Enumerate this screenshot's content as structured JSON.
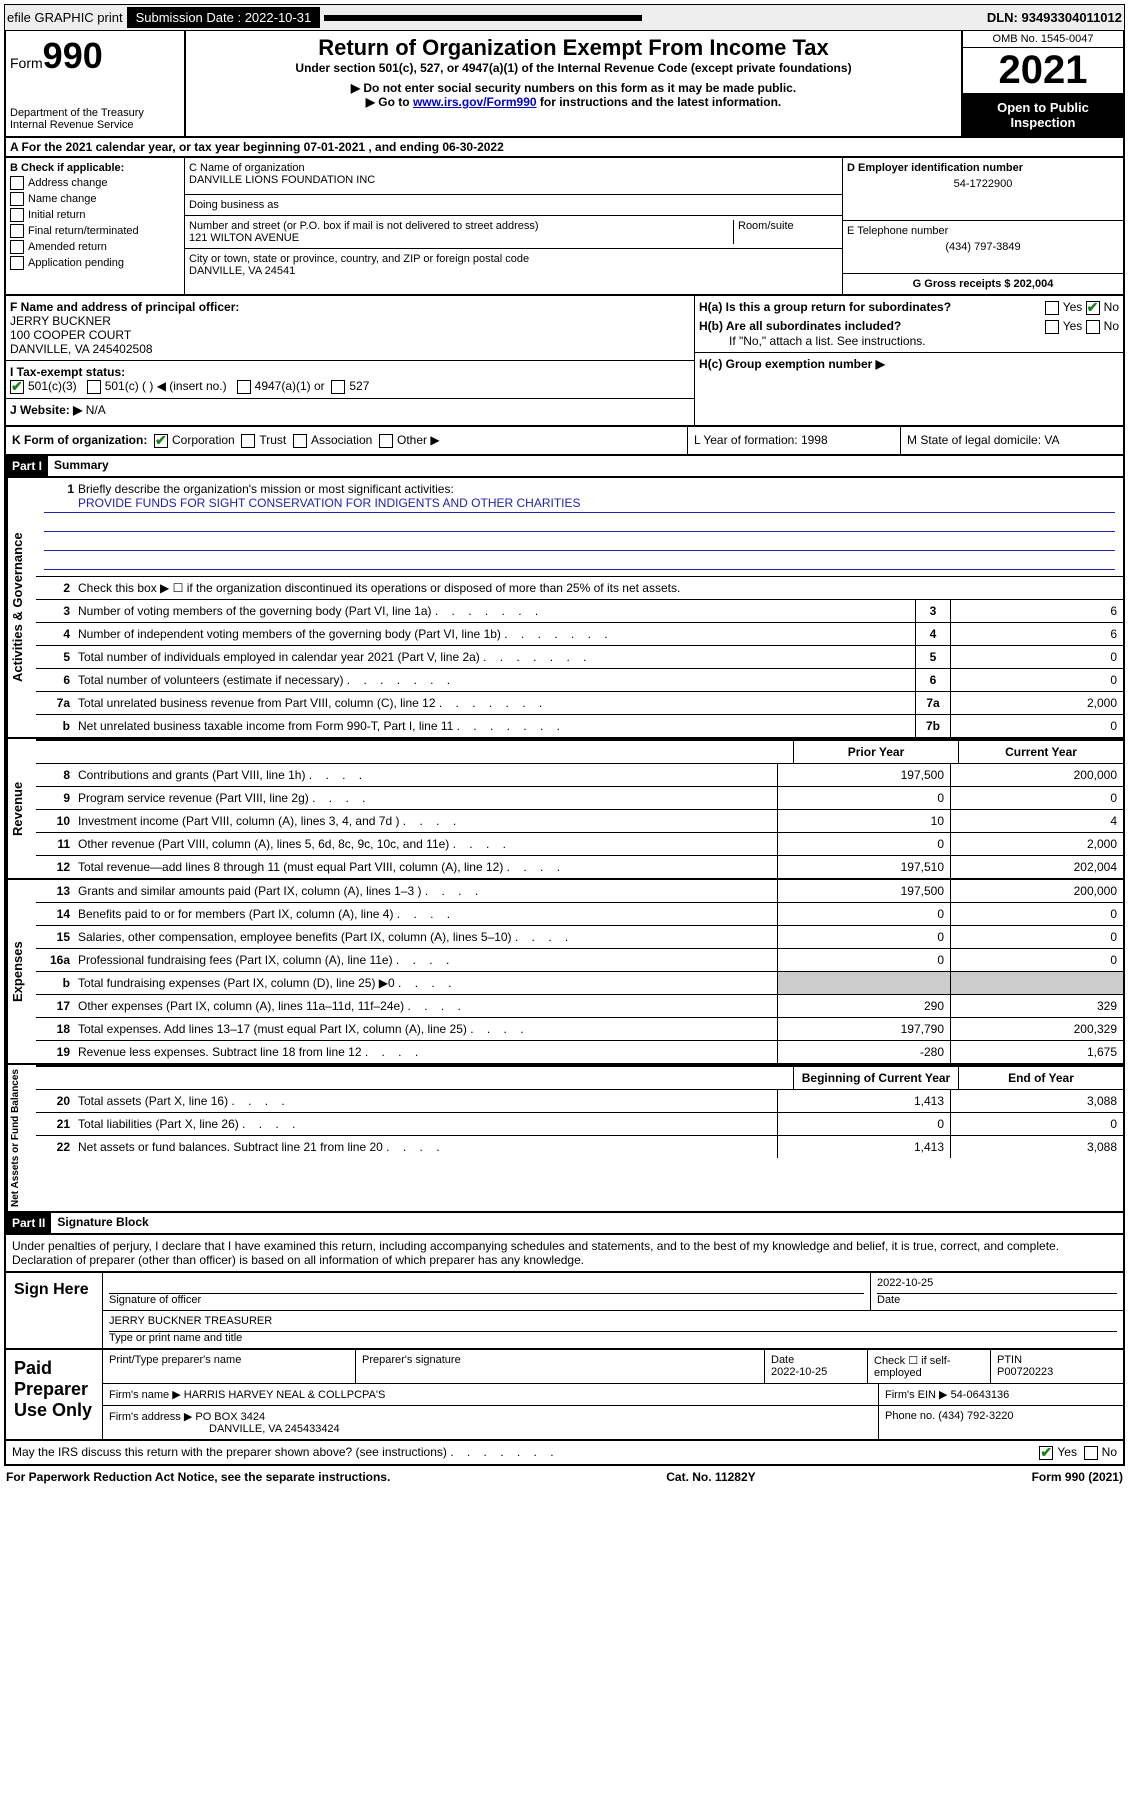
{
  "colors": {
    "link": "#0000cc",
    "check_green": "#1e7e1e",
    "mission_underline": "#2222aa",
    "shade": "#cccccc"
  },
  "top_bar": {
    "efile": "efile GRAPHIC print",
    "submission_label": "Submission Date : 2022-10-31",
    "dln": "DLN: 93493304011012"
  },
  "header": {
    "form_prefix": "Form",
    "form_number": "990",
    "dept": "Department of the Treasury",
    "irs": "Internal Revenue Service",
    "title": "Return of Organization Exempt From Income Tax",
    "subtitle": "Under section 501(c), 527, or 4947(a)(1) of the Internal Revenue Code (except private foundations)",
    "arrow1": "▶ Do not enter social security numbers on this form as it may be made public.",
    "arrow2_pre": "▶ Go to ",
    "arrow2_link": "www.irs.gov/Form990",
    "arrow2_post": " for instructions and the latest information.",
    "omb": "OMB No. 1545-0047",
    "year": "2021",
    "open": "Open to Public Inspection"
  },
  "row_a": "A For the 2021 calendar year, or tax year beginning 07-01-2021   , and ending 06-30-2022",
  "section_b": {
    "b_label": "B Check if applicable:",
    "checks": [
      "Address change",
      "Name change",
      "Initial return",
      "Final return/terminated",
      "Amended return",
      "Application pending"
    ],
    "c_name_label": "C Name of organization",
    "c_name": "DANVILLE LIONS FOUNDATION INC",
    "dba_label": "Doing business as",
    "dba": "",
    "street_label": "Number and street (or P.O. box if mail is not delivered to street address)",
    "room_label": "Room/suite",
    "street": "121 WILTON AVENUE",
    "city_label": "City or town, state or province, country, and ZIP or foreign postal code",
    "city": "DANVILLE, VA  24541",
    "d_label": "D Employer identification number",
    "d_value": "54-1722900",
    "e_label": "E Telephone number",
    "e_value": "(434) 797-3849",
    "g_label": "G Gross receipts $ 202,004"
  },
  "section_f": {
    "f_label": "F  Name and address of principal officer:",
    "f_name": "JERRY BUCKNER",
    "f_addr1": "100 COOPER COURT",
    "f_addr2": "DANVILLE, VA  245402508",
    "i_label": "I   Tax-exempt status:",
    "i_501c3": "501(c)(3)",
    "i_501c": "501(c) (  ) ◀ (insert no.)",
    "i_4947": "4947(a)(1) or",
    "i_527": "527",
    "j_label": "J   Website: ▶",
    "j_value": "N/A",
    "ha_label": "H(a)  Is this a group return for subordinates?",
    "hb_label": "H(b)  Are all subordinates included?",
    "hb_note": "If \"No,\" attach a list. See instructions.",
    "hc_label": "H(c)  Group exemption number ▶",
    "yes": "Yes",
    "no": "No"
  },
  "row_k": {
    "k_label": "K Form of organization:",
    "k_corp": "Corporation",
    "k_trust": "Trust",
    "k_assoc": "Association",
    "k_other": "Other ▶",
    "l_label": "L Year of formation: 1998",
    "m_label": "M State of legal domicile: VA"
  },
  "part1": {
    "header": "Part I",
    "title": "Summary",
    "q1_label": "1",
    "q1_text": "Briefly describe the organization's mission or most significant activities:",
    "q1_mission": "PROVIDE FUNDS FOR SIGHT CONSERVATION FOR INDIGENTS AND OTHER CHARITIES",
    "q2_text": "Check this box ▶ ☐  if the organization discontinued its operations or disposed of more than 25% of its net assets.",
    "lines_gov": [
      {
        "n": "3",
        "d": "Number of voting members of the governing body (Part VI, line 1a)",
        "box": "3",
        "v": "6"
      },
      {
        "n": "4",
        "d": "Number of independent voting members of the governing body (Part VI, line 1b)",
        "box": "4",
        "v": "6"
      },
      {
        "n": "5",
        "d": "Total number of individuals employed in calendar year 2021 (Part V, line 2a)",
        "box": "5",
        "v": "0"
      },
      {
        "n": "6",
        "d": "Total number of volunteers (estimate if necessary)",
        "box": "6",
        "v": "0"
      },
      {
        "n": "7a",
        "d": "Total unrelated business revenue from Part VIII, column (C), line 12",
        "box": "7a",
        "v": "2,000"
      },
      {
        "n": "b",
        "d": "Net unrelated business taxable income from Form 990-T, Part I, line 11",
        "box": "7b",
        "v": "0"
      }
    ],
    "col_prior": "Prior Year",
    "col_current": "Current Year",
    "lines_rev": [
      {
        "n": "8",
        "d": "Contributions and grants (Part VIII, line 1h)",
        "p": "197,500",
        "c": "200,000"
      },
      {
        "n": "9",
        "d": "Program service revenue (Part VIII, line 2g)",
        "p": "0",
        "c": "0"
      },
      {
        "n": "10",
        "d": "Investment income (Part VIII, column (A), lines 3, 4, and 7d )",
        "p": "10",
        "c": "4"
      },
      {
        "n": "11",
        "d": "Other revenue (Part VIII, column (A), lines 5, 6d, 8c, 9c, 10c, and 11e)",
        "p": "0",
        "c": "2,000"
      },
      {
        "n": "12",
        "d": "Total revenue—add lines 8 through 11 (must equal Part VIII, column (A), line 12)",
        "p": "197,510",
        "c": "202,004"
      }
    ],
    "lines_exp": [
      {
        "n": "13",
        "d": "Grants and similar amounts paid (Part IX, column (A), lines 1–3 )",
        "p": "197,500",
        "c": "200,000"
      },
      {
        "n": "14",
        "d": "Benefits paid to or for members (Part IX, column (A), line 4)",
        "p": "0",
        "c": "0"
      },
      {
        "n": "15",
        "d": "Salaries, other compensation, employee benefits (Part IX, column (A), lines 5–10)",
        "p": "0",
        "c": "0"
      },
      {
        "n": "16a",
        "d": "Professional fundraising fees (Part IX, column (A), line 11e)",
        "p": "0",
        "c": "0"
      },
      {
        "n": "b",
        "d": "Total fundraising expenses (Part IX, column (D), line 25) ▶0",
        "p": "",
        "c": "",
        "shade": true
      },
      {
        "n": "17",
        "d": "Other expenses (Part IX, column (A), lines 11a–11d, 11f–24e)",
        "p": "290",
        "c": "329"
      },
      {
        "n": "18",
        "d": "Total expenses. Add lines 13–17 (must equal Part IX, column (A), line 25)",
        "p": "197,790",
        "c": "200,329"
      },
      {
        "n": "19",
        "d": "Revenue less expenses. Subtract line 18 from line 12",
        "p": "-280",
        "c": "1,675"
      }
    ],
    "col_begin": "Beginning of Current Year",
    "col_end": "End of Year",
    "lines_net": [
      {
        "n": "20",
        "d": "Total assets (Part X, line 16)",
        "p": "1,413",
        "c": "3,088"
      },
      {
        "n": "21",
        "d": "Total liabilities (Part X, line 26)",
        "p": "0",
        "c": "0"
      },
      {
        "n": "22",
        "d": "Net assets or fund balances. Subtract line 21 from line 20",
        "p": "1,413",
        "c": "3,088"
      }
    ]
  },
  "part2": {
    "header": "Part II",
    "title": "Signature Block",
    "declaration": "Under penalties of perjury, I declare that I have examined this return, including accompanying schedules and statements, and to the best of my knowledge and belief, it is true, correct, and complete. Declaration of preparer (other than officer) is based on all information of which preparer has any knowledge.",
    "sign_here": "Sign Here",
    "sig_officer": "Signature of officer",
    "sig_date": "Date",
    "sig_date_val": "2022-10-25",
    "sig_name": "JERRY BUCKNER TREASURER",
    "sig_name_label": "Type or print name and title",
    "paid_label": "Paid Preparer Use Only",
    "prep_name_label": "Print/Type preparer's name",
    "prep_sig_label": "Preparer's signature",
    "prep_date_label": "Date",
    "prep_date": "2022-10-25",
    "prep_check_label": "Check ☐ if self-employed",
    "ptin_label": "PTIN",
    "ptin": "P00720223",
    "firm_name_label": "Firm's name    ▶",
    "firm_name": "HARRIS HARVEY NEAL & COLLPCPA'S",
    "firm_ein_label": "Firm's EIN ▶",
    "firm_ein": "54-0643136",
    "firm_addr_label": "Firm's address ▶",
    "firm_addr1": "PO BOX 3424",
    "firm_addr2": "DANVILLE, VA  245433424",
    "phone_label": "Phone no.",
    "phone": "(434) 792-3220",
    "may_irs": "May the IRS discuss this return with the preparer shown above? (see instructions)"
  },
  "footer": {
    "paperwork": "For Paperwork Reduction Act Notice, see the separate instructions.",
    "cat": "Cat. No. 11282Y",
    "formref": "Form 990 (2021)"
  }
}
